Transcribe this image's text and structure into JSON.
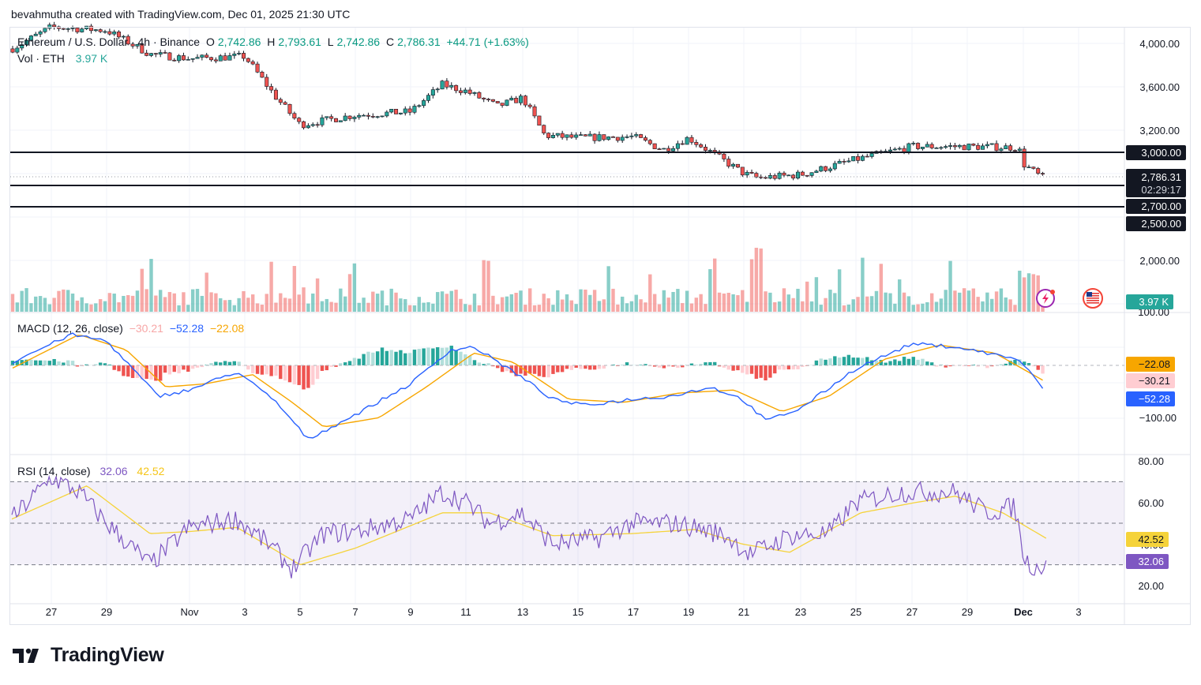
{
  "header": {
    "caption": "bevahmutha created with TradingView.com, Dec 01, 2025 21:30 UTC"
  },
  "legend": {
    "symbol": "Ethereum / U.S. Dollar · 4h · Binance",
    "o_label": "O",
    "o": "2,742.86",
    "h_label": "H",
    "h": "2,793.61",
    "l_label": "L",
    "l": "2,742.86",
    "c_label": "C",
    "c": "2,786.31",
    "change": "+44.71 (+1.63%)",
    "vol_label": "Vol · ETH",
    "vol": "3.97 K",
    "macd_label": "MACD (12, 26, close)",
    "macd_hist": "−30.21",
    "macd_line": "−52.28",
    "macd_signal": "−22.08",
    "rsi_label": "RSI (14, close)",
    "rsi": "32.06",
    "rsi_ma": "42.52"
  },
  "price_axis": {
    "ticks": [
      "4,000.00",
      "3,600.00",
      "3,200.00",
      "2,000.00"
    ],
    "level_tags": [
      "3,000.00",
      "2,700.00",
      "2,500.00"
    ],
    "last_price": "2,786.31",
    "countdown": "02:29:17",
    "vol_tag": "3.97 K",
    "vol_partial_tick": "100.00"
  },
  "macd_axis": {
    "ticks": [
      "−100.00"
    ],
    "tags": [
      "−22.08",
      "−30.21",
      "−52.28"
    ]
  },
  "rsi_axis": {
    "ticks": [
      "80.00",
      "60.00",
      "40.00",
      "20.00"
    ],
    "tags": [
      "42.52",
      "32.06"
    ]
  },
  "time_axis": {
    "labels": [
      "27",
      "29",
      "Nov",
      "3",
      "5",
      "7",
      "9",
      "11",
      "13",
      "15",
      "17",
      "19",
      "21",
      "23",
      "25",
      "27",
      "29",
      "Dec",
      "3"
    ]
  },
  "branding": {
    "logo": "TradingView"
  },
  "colors": {
    "up": "#26a69a",
    "down": "#ef5350",
    "macd": "#2962ff",
    "signal": "#f7a600",
    "rsi": "#7e57c2",
    "rsi_ma": "#f5d33a",
    "hline": "#131722"
  },
  "chart_data": [
    {
      "type": "candlestick",
      "title": "Ethereum / U.S. Dollar · 4h · Binance",
      "interval": "4h",
      "x": [
        "Oct 27",
        "Oct 29",
        "Oct 31",
        "Nov 2",
        "Nov 4",
        "Nov 5",
        "Nov 7",
        "Nov 9",
        "Nov 10",
        "Nov 11",
        "Nov 12",
        "Nov 13",
        "Nov 15",
        "Nov 17",
        "Nov 18",
        "Nov 19",
        "Nov 20",
        "Nov 21",
        "Nov 22",
        "Nov 23",
        "Nov 24",
        "Nov 25",
        "Nov 26",
        "Nov 27",
        "Nov 28",
        "Nov 29",
        "Nov 30",
        "Dec 1"
      ],
      "close_approx": [
        4150,
        4120,
        3880,
        3870,
        3450,
        3300,
        3420,
        3370,
        3600,
        3530,
        3400,
        3500,
        3100,
        3130,
        3140,
        3020,
        2990,
        2760,
        2780,
        2850,
        2930,
        2950,
        2960,
        3040,
        3050,
        3030,
        3050,
        2786.31
      ],
      "last_candle": {
        "open": 2742.86,
        "high": 2793.61,
        "low": 2742.86,
        "close": 2786.31,
        "change": 44.71,
        "change_pct": 1.63
      },
      "horizontal_lines": [
        3000,
        2700,
        2500
      ],
      "ylim": [
        2500,
        4100
      ],
      "ylabel": ""
    },
    {
      "type": "bar",
      "title": "Vol · ETH",
      "last_value": "3.97 K"
    },
    {
      "type": "line",
      "title": "MACD (12, 26, close)",
      "series": [
        {
          "name": "MACD",
          "last": -52.28
        },
        {
          "name": "Signal",
          "last": -22.08
        },
        {
          "name": "Histogram",
          "last": -30.21
        }
      ]
    },
    {
      "type": "line",
      "title": "RSI (14, close)",
      "ylim": [
        20,
        80
      ],
      "bands": [
        70,
        50,
        30
      ],
      "series": [
        {
          "name": "RSI",
          "last": 32.06
        },
        {
          "name": "RSI MA",
          "last": 42.52
        }
      ]
    }
  ]
}
